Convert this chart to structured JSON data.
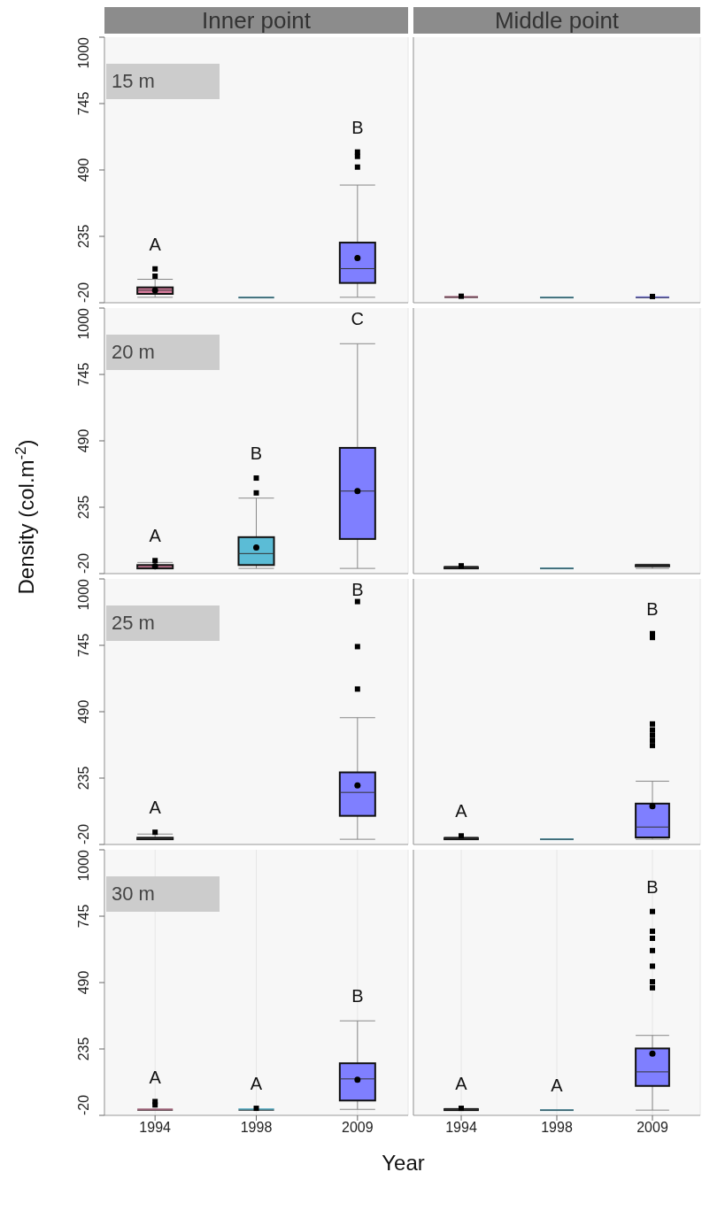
{
  "chart_data": [
    {
      "type": "box",
      "title": "Inner point",
      "subtitle": "15 m",
      "categories": [
        "1994",
        "1998",
        "2009"
      ],
      "colors": [
        "#d57a9b",
        "#5bbcd6",
        "#7f7fff"
      ],
      "ylim": [
        -20,
        1000
      ],
      "yticks": [
        -20,
        235,
        490,
        745,
        1000
      ],
      "grid": "x",
      "tick_labels": "y",
      "boxes": [
        {
          "low": 1,
          "q1": 14,
          "median": 28,
          "q3": 39,
          "high": 70,
          "mean": 28,
          "outliers": [
            82,
            110
          ]
        },
        {
          "low": 0,
          "q1": 0,
          "median": 0,
          "q3": 0,
          "high": 0
        },
        {
          "low": 1,
          "q1": 56,
          "median": 111,
          "q3": 211,
          "high": 432,
          "mean": 152,
          "outliers": [
            501,
            542,
            559
          ]
        }
      ],
      "annotations": [
        "A",
        "B"
      ]
    },
    {
      "type": "box",
      "title": "Middle point",
      "categories": [
        "1994",
        "1998",
        "2009"
      ],
      "colors": [
        "#d57a9b",
        "#5bbcd6",
        "#7f7fff"
      ],
      "ylim": [
        -20,
        1000
      ],
      "yticks": [
        -20,
        235,
        490,
        745,
        1000
      ],
      "grid": "x",
      "tick_labels": false,
      "boxes": [
        {
          "low": 0,
          "q1": 0,
          "median": 1,
          "q3": 2,
          "high": 4,
          "outliers": [
            5
          ]
        },
        {
          "low": 0,
          "q1": 0,
          "median": 0,
          "q3": 0,
          "high": 0
        },
        {
          "low": 0,
          "q1": 0,
          "median": 0,
          "q3": 1,
          "high": 2,
          "outliers": [
            4
          ]
        }
      ]
    },
    {
      "type": "box",
      "subtitle": "20 m",
      "ylabel": "Density (col.m$^{-2}$)",
      "categories": [
        "1994",
        "1998",
        "2009"
      ],
      "colors": [
        "#d57a9b",
        "#5bbcd6",
        "#7f7fff"
      ],
      "ylim": [
        -20,
        1000
      ],
      "yticks": [
        -20,
        235,
        490,
        745,
        1000
      ],
      "grid": "x",
      "tick_labels": "y",
      "boxes": [
        {
          "low": 0,
          "q1": 0,
          "median": 3,
          "q3": 13,
          "high": 23,
          "mean": 8,
          "outliers": [
            30
          ]
        },
        {
          "low": 0,
          "q1": 13,
          "median": 57,
          "q3": 120,
          "high": 270,
          "mean": 80,
          "outliers": [
            290,
            347
          ]
        },
        {
          "low": 0,
          "q1": 113,
          "median": 297,
          "q3": 463,
          "high": 863,
          "mean": 297
        }
      ],
      "annotations": [
        "A",
        "B",
        "C"
      ]
    },
    {
      "type": "box",
      "categories": [
        "1994",
        "1998",
        "2009"
      ],
      "colors": [
        "#d57a9b",
        "#5bbcd6",
        "#7f7fff"
      ],
      "ylim": [
        -20,
        1000
      ],
      "yticks": [
        -20,
        235,
        490,
        745,
        1000
      ],
      "grid": "x",
      "tick_labels": false,
      "boxes": [
        {
          "low": 0,
          "q1": 0,
          "median": 2,
          "q3": 5,
          "high": 8,
          "outliers": [
            10
          ]
        },
        {
          "low": 0,
          "q1": 0,
          "median": 0,
          "q3": 0,
          "high": 0
        },
        {
          "low": 0,
          "q1": 8,
          "median": 10,
          "q3": 13,
          "high": 16
        }
      ]
    },
    {
      "type": "box",
      "subtitle": "25 m",
      "categories": [
        "1994",
        "1998",
        "2009"
      ],
      "colors": [
        "#d57a9b",
        "#5bbcd6",
        "#7f7fff"
      ],
      "ylim": [
        -20,
        1000
      ],
      "yticks": [
        -20,
        235,
        490,
        745,
        1000
      ],
      "grid": "x",
      "tick_labels": "y",
      "boxes": [
        {
          "low": 0,
          "q1": 0,
          "median": 2,
          "q3": 6,
          "high": 20,
          "outliers": [
            27
          ]
        },
        null,
        {
          "low": 0,
          "q1": 90,
          "median": 180,
          "q3": 257,
          "high": 467,
          "mean": 207,
          "outliers": [
            577,
            740,
            913
          ]
        }
      ],
      "annotations": [
        "A",
        "B"
      ]
    },
    {
      "type": "box",
      "categories": [
        "1994",
        "1998",
        "2009"
      ],
      "colors": [
        "#d57a9b",
        "#5bbcd6",
        "#7f7fff"
      ],
      "ylim": [
        -20,
        1000
      ],
      "yticks": [
        -20,
        235,
        490,
        745,
        1000
      ],
      "grid": "x",
      "tick_labels": false,
      "boxes": [
        {
          "low": 0,
          "q1": 0,
          "median": 3,
          "q3": 5,
          "high": 8,
          "outliers": [
            13
          ]
        },
        {
          "low": 0,
          "q1": 0,
          "median": 0,
          "q3": 0,
          "high": 0
        },
        {
          "low": 0,
          "q1": 7,
          "median": 47,
          "q3": 137,
          "high": 223,
          "mean": 127,
          "outliers": [
            360,
            380,
            400,
            420,
            443,
            775,
            790
          ]
        }
      ],
      "annotations": [
        "A",
        "B"
      ]
    },
    {
      "type": "box",
      "subtitle": "30 m",
      "xlabel": "Year",
      "categories": [
        "1994",
        "1998",
        "2009"
      ],
      "colors": [
        "#d57a9b",
        "#5bbcd6",
        "#7f7fff"
      ],
      "ylim": [
        -20,
        1000
      ],
      "yticks": [
        -20,
        235,
        490,
        745,
        1000
      ],
      "grid": "x",
      "boxes": [
        {
          "low": 0,
          "q1": 0,
          "median": 0,
          "q3": 2,
          "high": 5,
          "outliers": [
            20,
            33
          ]
        },
        {
          "low": 0,
          "q1": 0,
          "median": 0,
          "q3": 3,
          "high": 5,
          "outliers": [
            7
          ]
        },
        {
          "low": 3,
          "q1": 37,
          "median": 120,
          "q3": 180,
          "high": 343,
          "mean": 117
        }
      ],
      "annotations": [
        "A",
        "A",
        "B"
      ]
    },
    {
      "type": "box",
      "categories": [
        "1994",
        "1998",
        "2009"
      ],
      "colors": [
        "#d57a9b",
        "#5bbcd6",
        "#7f7fff"
      ],
      "ylim": [
        -20,
        1000
      ],
      "yticks": [
        -20,
        235,
        490,
        745,
        1000
      ],
      "grid": "x",
      "tick_labels": "x",
      "boxes": [
        {
          "low": 0,
          "q1": 0,
          "median": 2,
          "q3": 4,
          "high": 6,
          "outliers": [
            7
          ]
        },
        {
          "low": 0,
          "q1": 0,
          "median": 0,
          "q3": 0,
          "high": 2
        },
        {
          "low": 0,
          "q1": 93,
          "median": 147,
          "q3": 237,
          "high": 287,
          "mean": 217,
          "outliers": [
            470,
            493,
            553,
            613,
            660,
            687,
            763
          ]
        }
      ],
      "annotations": [
        "A",
        "A",
        "B"
      ]
    }
  ]
}
